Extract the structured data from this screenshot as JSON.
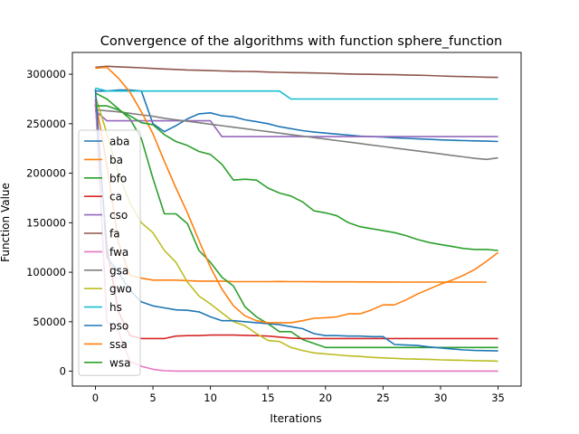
{
  "chart_data": {
    "type": "line",
    "title": "Convergence of the algorithms with function sphere_function",
    "xlabel": "Iterations",
    "ylabel": "Function Value",
    "xlim": [
      -2,
      37
    ],
    "ylim": [
      -15000,
      322000
    ],
    "xticks": [
      0,
      5,
      10,
      15,
      20,
      25,
      30,
      35
    ],
    "yticks": [
      0,
      50000,
      100000,
      150000,
      200000,
      250000,
      300000
    ],
    "ytick_labels": [
      "0",
      "50000",
      "100000",
      "150000",
      "200000",
      "250000",
      "300000"
    ],
    "grid": false,
    "legend_position": "center-left",
    "series": [
      {
        "name": "aba",
        "color": "#1f77b4",
        "x": [
          0,
          1,
          2,
          3,
          4,
          5,
          6,
          7,
          8,
          9,
          10,
          11,
          12,
          13,
          14,
          15,
          16,
          17,
          18,
          19,
          20,
          21,
          22,
          23,
          24,
          25,
          26,
          27,
          28,
          29,
          30,
          31,
          32,
          33,
          34,
          35
        ],
        "y": [
          283000,
          283000,
          284000,
          284000,
          283000,
          250000,
          242000,
          248000,
          255000,
          260000,
          261000,
          258000,
          257000,
          254000,
          252000,
          250000,
          247000,
          245000,
          243000,
          241500,
          240500,
          239500,
          238500,
          237500,
          237000,
          236500,
          235800,
          235200,
          234700,
          234200,
          233700,
          233300,
          233000,
          232700,
          232400,
          232000
        ]
      },
      {
        "name": "ba",
        "color": "#ff7f0e",
        "x": [
          0,
          1,
          2,
          3,
          4,
          5,
          6,
          7,
          8,
          9,
          10,
          11,
          12,
          13,
          14,
          15,
          16,
          17,
          18,
          19,
          20,
          21,
          22,
          23,
          24,
          25,
          26,
          27,
          28,
          29,
          30,
          31,
          32,
          33,
          34
        ],
        "y": [
          275000,
          208000,
          130000,
          97000,
          94000,
          92000,
          92000,
          92000,
          91500,
          91000,
          91000,
          91000,
          90500,
          90500,
          90500,
          90500,
          90700,
          90500,
          90500,
          90400,
          90300,
          90300,
          90300,
          90200,
          90200,
          90100,
          90100,
          90000,
          90000,
          90000,
          90000,
          90000,
          90000,
          90000,
          90000
        ]
      },
      {
        "name": "bfo",
        "color": "#2ca02c",
        "x": [
          0,
          1,
          2,
          3,
          4,
          5,
          6,
          7,
          8,
          9,
          10,
          11,
          12,
          13,
          14,
          15,
          16,
          17,
          18,
          19,
          20,
          21,
          22,
          23,
          24,
          25,
          26,
          27,
          28,
          29,
          30,
          31,
          32,
          33,
          34,
          35
        ],
        "y": [
          281000,
          275000,
          265000,
          255000,
          235000,
          195000,
          159000,
          159000,
          149000,
          122000,
          110000,
          95000,
          86000,
          65000,
          55000,
          48000,
          40000,
          40000,
          32000,
          28000,
          24000,
          24000,
          24000,
          24000,
          24000,
          24000,
          24000,
          24000,
          24000,
          24000,
          24000,
          24000,
          24000,
          24000,
          24000,
          24000
        ]
      },
      {
        "name": "ca",
        "color": "#d62728",
        "x": [
          0,
          1,
          2,
          3,
          4,
          5,
          6,
          7,
          8,
          9,
          10,
          11,
          12,
          13,
          14,
          15,
          16,
          17,
          18,
          19,
          20,
          21,
          22,
          23,
          24,
          25,
          26,
          27,
          28,
          29,
          30,
          31,
          32,
          33,
          34,
          35
        ],
        "y": [
          270000,
          125000,
          60000,
          36000,
          33000,
          33000,
          33000,
          35500,
          36000,
          36000,
          36500,
          36500,
          36500,
          36200,
          36000,
          35500,
          34500,
          33500,
          33000,
          33000,
          33000,
          33000,
          33000,
          33000,
          33000,
          33000,
          33000,
          33000,
          33000,
          33000,
          33000,
          33000,
          33000,
          33000,
          33000,
          33000
        ]
      },
      {
        "name": "cso",
        "color": "#9467bd",
        "x": [
          0,
          1,
          2,
          3,
          4,
          5,
          6,
          7,
          8,
          9,
          10,
          11,
          12,
          13,
          14,
          15,
          16,
          17,
          18,
          19,
          20,
          21,
          22,
          23,
          24,
          25,
          26,
          27,
          28,
          29,
          30,
          31,
          32,
          33,
          34,
          35
        ],
        "y": [
          263000,
          253000,
          253000,
          253000,
          253000,
          253000,
          253000,
          253000,
          253000,
          253000,
          253000,
          237000,
          237000,
          237000,
          237000,
          237000,
          237000,
          237000,
          237000,
          237000,
          237000,
          237000,
          237000,
          237000,
          237000,
          237000,
          237000,
          237000,
          237000,
          237000,
          237000,
          237000,
          237000,
          237000,
          237000,
          237000
        ]
      },
      {
        "name": "fa",
        "color": "#8c564b",
        "x": [
          0,
          1,
          2,
          3,
          4,
          5,
          6,
          7,
          8,
          9,
          10,
          11,
          12,
          13,
          14,
          15,
          16,
          17,
          18,
          19,
          20,
          21,
          22,
          23,
          24,
          25,
          26,
          27,
          28,
          29,
          30,
          31,
          32,
          33,
          34,
          35
        ],
        "y": [
          307000,
          308000,
          307500,
          307000,
          306500,
          305800,
          305300,
          304800,
          304300,
          304000,
          303600,
          303300,
          303000,
          302800,
          302600,
          302200,
          301900,
          301600,
          301500,
          301300,
          301000,
          300600,
          300300,
          300000,
          299900,
          299700,
          299500,
          299300,
          299000,
          298700,
          298300,
          297900,
          297600,
          297300,
          297000,
          296800
        ]
      },
      {
        "name": "fwa",
        "color": "#e377c2",
        "x": [
          0,
          1,
          2,
          3,
          4,
          5,
          6,
          7,
          8,
          9,
          10,
          11,
          12,
          13,
          14,
          15,
          16,
          17,
          18,
          19,
          20,
          21,
          22,
          23,
          24,
          25,
          26,
          27,
          28,
          29,
          30,
          31,
          32,
          33,
          34,
          35
        ],
        "y": [
          275000,
          50000,
          40000,
          10000,
          5000,
          2000,
          500,
          200,
          200,
          200,
          200,
          200,
          200,
          200,
          200,
          200,
          200,
          200,
          200,
          200,
          200,
          200,
          200,
          200,
          200,
          200,
          200,
          200,
          200,
          200,
          200,
          200,
          200,
          200,
          200,
          200
        ]
      },
      {
        "name": "gsa",
        "color": "#7f7f7f",
        "x": [
          0,
          1,
          2,
          3,
          4,
          5,
          6,
          7,
          8,
          9,
          10,
          11,
          12,
          13,
          14,
          15,
          16,
          17,
          18,
          19,
          20,
          21,
          22,
          23,
          24,
          25,
          26,
          27,
          28,
          29,
          30,
          31,
          32,
          33,
          34,
          35
        ],
        "y": [
          264000,
          263000,
          262000,
          260500,
          259000,
          257500,
          255500,
          254000,
          252500,
          251000,
          249500,
          248000,
          246500,
          245000,
          243500,
          242000,
          240500,
          239000,
          237500,
          236000,
          234500,
          233000,
          231500,
          230000,
          228500,
          227000,
          225500,
          224000,
          222500,
          221000,
          219500,
          218000,
          216500,
          215000,
          214000,
          215500
        ]
      },
      {
        "name": "gwo",
        "color": "#bcbd22",
        "x": [
          0,
          1,
          2,
          3,
          4,
          5,
          6,
          7,
          8,
          9,
          10,
          11,
          12,
          13,
          14,
          15,
          16,
          17,
          18,
          19,
          20,
          21,
          22,
          23,
          24,
          25,
          26,
          27,
          28,
          29,
          30,
          31,
          32,
          33,
          34,
          35
        ],
        "y": [
          278000,
          240000,
          200000,
          170000,
          150000,
          140000,
          122000,
          110000,
          90000,
          76000,
          68000,
          59000,
          50000,
          46000,
          38000,
          31000,
          30000,
          24000,
          21000,
          18500,
          17500,
          16500,
          15500,
          15000,
          14000,
          13500,
          13000,
          12500,
          12200,
          12000,
          11500,
          11200,
          11000,
          10700,
          10500,
          10200
        ]
      },
      {
        "name": "hs",
        "color": "#17becf",
        "x": [
          0,
          1,
          2,
          3,
          4,
          5,
          6,
          7,
          8,
          9,
          10,
          11,
          12,
          13,
          14,
          15,
          16,
          17,
          18,
          19,
          20,
          21,
          22,
          23,
          24,
          25,
          26,
          27,
          28,
          29,
          30,
          31,
          32,
          33,
          34,
          35
        ],
        "y": [
          286000,
          283000,
          283000,
          283000,
          283000,
          283000,
          283000,
          283000,
          283000,
          283000,
          283000,
          283000,
          283000,
          283000,
          283000,
          283000,
          283000,
          275000,
          275000,
          275000,
          275000,
          275000,
          275000,
          275000,
          275000,
          275000,
          275000,
          275000,
          275000,
          275000,
          275000,
          275000,
          275000,
          275000,
          275000,
          275000
        ]
      },
      {
        "name": "pso",
        "color": "#1f77b4",
        "x": [
          0,
          1,
          2,
          3,
          4,
          5,
          6,
          7,
          8,
          9,
          10,
          11,
          12,
          13,
          14,
          15,
          16,
          17,
          18,
          19,
          20,
          21,
          22,
          23,
          24,
          25,
          26,
          27,
          28,
          29,
          30,
          31,
          32,
          33,
          34,
          35
        ],
        "y": [
          285000,
          115000,
          100000,
          82000,
          70000,
          66000,
          64000,
          62000,
          61500,
          60000,
          55000,
          51000,
          51000,
          50000,
          49000,
          48000,
          47000,
          45000,
          43000,
          38000,
          36000,
          36000,
          35500,
          35500,
          35000,
          35000,
          27000,
          26500,
          26000,
          24500,
          23500,
          22500,
          21500,
          21000,
          20800,
          20500
        ]
      },
      {
        "name": "ssa",
        "color": "#ff7f0e",
        "x": [
          0,
          1,
          2,
          3,
          4,
          5,
          6,
          7,
          8,
          9,
          10,
          11,
          12,
          13,
          14,
          15,
          16,
          17,
          18,
          19,
          20,
          21,
          22,
          23,
          24,
          25,
          26,
          27,
          28,
          29,
          30,
          31,
          32,
          33,
          34,
          35
        ],
        "y": [
          306000,
          307000,
          296000,
          282000,
          262000,
          240000,
          212000,
          185000,
          160000,
          132000,
          105000,
          83000,
          66000,
          56000,
          51000,
          49000,
          49000,
          49000,
          51000,
          53500,
          54000,
          55000,
          58000,
          58000,
          62000,
          67000,
          67000,
          72000,
          78000,
          83000,
          88000,
          92000,
          97000,
          103000,
          111000,
          120000
        ]
      },
      {
        "name": "wsa",
        "color": "#2ca02c",
        "x": [
          0,
          1,
          2,
          3,
          4,
          5,
          6,
          7,
          8,
          9,
          10,
          11,
          12,
          13,
          14,
          15,
          16,
          17,
          18,
          19,
          20,
          21,
          22,
          23,
          24,
          25,
          26,
          27,
          28,
          29,
          30,
          31,
          32,
          33,
          34,
          35
        ],
        "y": [
          268000,
          268000,
          264000,
          258000,
          251000,
          249000,
          239000,
          232000,
          228000,
          222000,
          219000,
          209000,
          193000,
          194000,
          193000,
          185000,
          180000,
          177000,
          171000,
          162000,
          160000,
          157000,
          150000,
          146000,
          144000,
          142000,
          140000,
          137000,
          133000,
          130000,
          128000,
          126000,
          124000,
          123000,
          123000,
          122000
        ]
      }
    ]
  }
}
